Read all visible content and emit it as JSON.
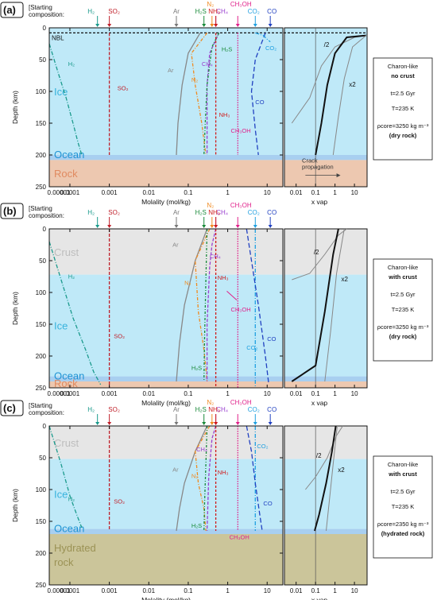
{
  "chart_data": [
    {
      "type": "line",
      "panel": "(a)",
      "starting_composition_label": "[Starting composition:",
      "xlabel": "Molality (mol/kg)",
      "ylabel": "Depth (km)",
      "x_scale": "log",
      "xlim": [
        3e-05,
        25
      ],
      "ylim": [
        0,
        250
      ],
      "x_ticks": [
        "0.00001",
        "0.0001",
        "0.001",
        "0.01",
        "0.1",
        "1",
        "10"
      ],
      "y_ticks": [
        "0",
        "50",
        "100",
        "150",
        "200",
        "250"
      ],
      "right_xlabel": "x vap",
      "right_x_ticks": [
        "0.01",
        "0.1",
        "1",
        "10"
      ],
      "layers": [
        {
          "name": "Ice",
          "from": 0,
          "to": 200,
          "color": "#bfe9f8"
        },
        {
          "name": "Ocean",
          "from": 200,
          "to": 208,
          "color": "#a8cff0"
        },
        {
          "name": "Rock",
          "from": 208,
          "to": 250,
          "color": "#edc8b0"
        }
      ],
      "nbl_label": "NBL",
      "nbl_depth": 8,
      "starting_markers": [
        {
          "name": "H₂",
          "x": 0.0005,
          "color": "#1a9a8c"
        },
        {
          "name": "SO₂",
          "x": 0.001,
          "color": "#c0202a"
        },
        {
          "name": "Ar",
          "x": 0.05,
          "color": "#777777"
        },
        {
          "name": "H₂S",
          "x": 0.25,
          "color": "#1a8a3a"
        },
        {
          "name": "N₂",
          "x": 0.4,
          "color": "#f08a20"
        },
        {
          "name": "CH₄",
          "x": 0.5,
          "color": "#9a40d0"
        },
        {
          "name": "NH₃",
          "x": 0.5,
          "color": "#d01a1a"
        },
        {
          "name": "CH₃OH",
          "x": 1.8,
          "color": "#e0208a"
        },
        {
          "name": "CO₂",
          "x": 5,
          "color": "#20a0e0"
        },
        {
          "name": "CO",
          "x": 12,
          "color": "#2040c0"
        }
      ],
      "series": [
        {
          "name": "H₂",
          "color": "#1a9a8c",
          "x": [
            3e-05,
            5e-05,
            8e-05,
            0.00012,
            0.00016,
            0.0002
          ],
          "y": [
            25,
            70,
            110,
            150,
            180,
            200
          ]
        },
        {
          "name": "SO₂",
          "color": "#c0202a",
          "x": [
            0.001,
            0.001,
            0.001
          ],
          "y": [
            8,
            100,
            200
          ]
        },
        {
          "name": "Ar",
          "color": "#888888",
          "x": [
            0.2,
            0.1,
            0.07,
            0.055,
            0.05
          ],
          "y": [
            8,
            40,
            90,
            150,
            200
          ]
        },
        {
          "name": "N₂",
          "color": "#f08a20",
          "x": [
            0.3,
            0.12,
            0.15,
            0.22,
            0.28
          ],
          "y": [
            8,
            40,
            90,
            150,
            200
          ]
        },
        {
          "name": "CH₄",
          "color": "#9a40d0",
          "x": [
            0.6,
            0.35,
            0.3,
            0.3,
            0.3
          ],
          "y": [
            8,
            40,
            90,
            150,
            200
          ]
        },
        {
          "name": "H₂S",
          "color": "#1a8a3a",
          "x": [
            0.6,
            0.4,
            0.3,
            0.27,
            0.25
          ],
          "y": [
            8,
            30,
            90,
            150,
            200
          ]
        },
        {
          "name": "NH₃",
          "color": "#d01a1a",
          "x": [
            0.5,
            0.5,
            0.5
          ],
          "y": [
            8,
            100,
            200
          ]
        },
        {
          "name": "CH₃OH",
          "color": "#e0208a",
          "x": [
            1.8,
            1.8,
            1.8
          ],
          "y": [
            8,
            100,
            200
          ]
        },
        {
          "name": "CO",
          "color": "#2040c0",
          "x": [
            9,
            5,
            4,
            5,
            6
          ],
          "y": [
            8,
            50,
            100,
            160,
            200
          ]
        },
        {
          "name": "CO₂",
          "color": "#20a0e0",
          "x": [
            5,
            8,
            10,
            12
          ],
          "y": [
            8,
            12,
            18,
            22
          ]
        }
      ],
      "right_curves": [
        {
          "label": "/2",
          "color": "#888888",
          "width": 1,
          "x": [
            0.006,
            0.05,
            0.2,
            1.0,
            10,
            40
          ],
          "y": [
            150,
            110,
            60,
            30,
            15,
            12
          ]
        },
        {
          "label": "",
          "color": "#111111",
          "width": 2,
          "x": [
            0.1,
            0.2,
            0.4,
            1.0,
            4,
            40
          ],
          "y": [
            200,
            150,
            90,
            40,
            15,
            12
          ]
        },
        {
          "label": "x2",
          "color": "#888888",
          "width": 1,
          "x": [
            0.8,
            1.5,
            3,
            8,
            40
          ],
          "y": [
            200,
            140,
            80,
            30,
            12
          ]
        }
      ],
      "crack_label": "Crack propagation",
      "box": [
        "Charon-like",
        "no crust",
        "t=2.5 Gyr",
        "T=235 K",
        "ρcore=3250 kg m⁻³",
        "(dry rock)"
      ]
    },
    {
      "type": "line",
      "panel": "(b)",
      "starting_composition_label": "[Starting composition:",
      "xlabel": "Molality (mol/kg)",
      "ylabel": "Depth (km)",
      "x_scale": "log",
      "xlim": [
        3e-05,
        25
      ],
      "ylim": [
        0,
        250
      ],
      "x_ticks": [
        "0.00001",
        "0.0001",
        "0.001",
        "0.01",
        "0.1",
        "1",
        "10"
      ],
      "y_ticks": [
        "0",
        "50",
        "100",
        "150",
        "200",
        "250"
      ],
      "right_xlabel": "x vap",
      "right_x_ticks": [
        "0.01",
        "0.1",
        "1",
        "10"
      ],
      "layers": [
        {
          "name": "Crust",
          "from": 0,
          "to": 72,
          "color": "#e6e6e6"
        },
        {
          "name": "Ice",
          "from": 72,
          "to": 232,
          "color": "#bfe9f8"
        },
        {
          "name": "Ocean",
          "from": 232,
          "to": 240,
          "color": "#a8cff0"
        },
        {
          "name": "Rock",
          "from": 240,
          "to": 250,
          "color": "#edc8b0"
        }
      ],
      "nbl_label": "",
      "nbl_depth": null,
      "starting_markers": [
        {
          "name": "H₂",
          "x": 0.0005,
          "color": "#1a9a8c"
        },
        {
          "name": "SO₂",
          "x": 0.001,
          "color": "#c0202a"
        },
        {
          "name": "Ar",
          "x": 0.05,
          "color": "#777777"
        },
        {
          "name": "H₂S",
          "x": 0.25,
          "color": "#1a8a3a"
        },
        {
          "name": "N₂",
          "x": 0.4,
          "color": "#f08a20"
        },
        {
          "name": "CH₄",
          "x": 0.5,
          "color": "#9a40d0"
        },
        {
          "name": "NH₃",
          "x": 0.5,
          "color": "#d01a1a"
        },
        {
          "name": "CH₃OH",
          "x": 1.8,
          "color": "#e0208a"
        },
        {
          "name": "CO₂",
          "x": 5,
          "color": "#20a0e0"
        },
        {
          "name": "CO",
          "x": 12,
          "color": "#2040c0"
        }
      ],
      "series": [
        {
          "name": "H₂",
          "color": "#1a9a8c",
          "x": [
            3e-05,
            6e-05,
            0.00012,
            0.00025,
            0.0004,
            0.0006
          ],
          "y": [
            20,
            80,
            140,
            190,
            225,
            245
          ]
        },
        {
          "name": "SO₂",
          "color": "#c0202a",
          "x": [
            0.001,
            0.001,
            0.001
          ],
          "y": [
            0,
            120,
            250
          ]
        },
        {
          "name": "Ar",
          "color": "#888888",
          "x": [
            0.3,
            0.15,
            0.08,
            0.06,
            0.05
          ],
          "y": [
            0,
            50,
            120,
            180,
            240
          ]
        },
        {
          "name": "N₂",
          "color": "#f08a20",
          "x": [
            0.35,
            0.15,
            0.18,
            0.25,
            0.3
          ],
          "y": [
            0,
            50,
            130,
            190,
            240
          ]
        },
        {
          "name": "CH₄",
          "color": "#9a40d0",
          "x": [
            0.5,
            0.4,
            0.35,
            0.3,
            0.3
          ],
          "y": [
            0,
            25,
            60,
            150,
            240
          ]
        },
        {
          "name": "H₂S",
          "color": "#1a8a3a",
          "x": [
            0.3,
            0.28,
            0.26,
            0.25
          ],
          "y": [
            0,
            80,
            170,
            240
          ]
        },
        {
          "name": "NH₃",
          "color": "#d01a1a",
          "x": [
            0.5,
            0.5,
            0.5
          ],
          "y": [
            0,
            120,
            250
          ]
        },
        {
          "name": "CH₃OH",
          "color": "#e0208a",
          "x": [
            1.8,
            1.8,
            1.8
          ],
          "y": [
            0,
            120,
            250
          ]
        },
        {
          "name": "CO₂",
          "color": "#20a0e0",
          "x": [
            5,
            5,
            5
          ],
          "y": [
            0,
            120,
            250
          ]
        },
        {
          "name": "CO",
          "color": "#2040c0",
          "x": [
            3,
            4,
            6,
            9,
            11
          ],
          "y": [
            0,
            50,
            120,
            200,
            245
          ]
        }
      ],
      "right_curves": [
        {
          "label": "/2",
          "color": "#888888",
          "width": 1,
          "x": [
            0.006,
            0.05,
            0.3,
            1.5,
            4
          ],
          "y": [
            80,
            70,
            40,
            10,
            0
          ]
        },
        {
          "label": "",
          "color": "#111111",
          "width": 2,
          "x": [
            0.006,
            0.1,
            0.3,
            0.8,
            1.5
          ],
          "y": [
            240,
            215,
            130,
            40,
            0
          ]
        },
        {
          "label": "x2",
          "color": "#888888",
          "width": 1,
          "x": [
            0.3,
            0.6,
            1.2,
            3
          ],
          "y": [
            240,
            160,
            70,
            0
          ]
        }
      ],
      "crack_label": "",
      "box": [
        "Charon-like",
        "with crust",
        "t=2.5 Gyr",
        "T=235 K",
        "ρcore=3250 kg m⁻³",
        "(dry rock)"
      ]
    },
    {
      "type": "line",
      "panel": "(c)",
      "starting_composition_label": "[Starting composition:",
      "xlabel": "Molality (mol/kg)",
      "ylabel": "Depth (km)",
      "x_scale": "log",
      "xlim": [
        3e-05,
        25
      ],
      "ylim": [
        0,
        250
      ],
      "x_ticks": [
        "0.00001",
        "0.0001",
        "0.001",
        "0.01",
        "0.1",
        "1",
        "10"
      ],
      "y_ticks": [
        "0",
        "50",
        "100",
        "150",
        "200",
        "250"
      ],
      "right_xlabel": "x vap",
      "right_x_ticks": [
        "0.01",
        "0.1",
        "1",
        "10"
      ],
      "layers": [
        {
          "name": "Crust",
          "from": 0,
          "to": 52,
          "color": "#e6e6e6"
        },
        {
          "name": "Ice",
          "from": 52,
          "to": 162,
          "color": "#bfe9f8"
        },
        {
          "name": "Ocean",
          "from": 162,
          "to": 170,
          "color": "#a8cff0"
        },
        {
          "name": "Hydrated rock",
          "from": 170,
          "to": 250,
          "color": "#cbc59a"
        }
      ],
      "nbl_label": "",
      "nbl_depth": null,
      "starting_markers": [
        {
          "name": "H₂",
          "x": 0.0005,
          "color": "#1a9a8c"
        },
        {
          "name": "SO₂",
          "x": 0.001,
          "color": "#c0202a"
        },
        {
          "name": "Ar",
          "x": 0.05,
          "color": "#777777"
        },
        {
          "name": "H₂S",
          "x": 0.25,
          "color": "#1a8a3a"
        },
        {
          "name": "N₂",
          "x": 0.4,
          "color": "#f08a20"
        },
        {
          "name": "CH₄",
          "x": 0.5,
          "color": "#9a40d0"
        },
        {
          "name": "NH₃",
          "x": 0.5,
          "color": "#d01a1a"
        },
        {
          "name": "CH₃OH",
          "x": 1.8,
          "color": "#e0208a"
        },
        {
          "name": "CO₂",
          "x": 5,
          "color": "#20a0e0"
        },
        {
          "name": "CO",
          "x": 12,
          "color": "#2040c0"
        }
      ],
      "series": [
        {
          "name": "H₂",
          "color": "#1a9a8c",
          "x": [
            3e-05,
            6e-05,
            0.0001,
            0.00015,
            0.0002
          ],
          "y": [
            0,
            60,
            110,
            140,
            160
          ]
        },
        {
          "name": "SO₂",
          "color": "#c0202a",
          "x": [
            0.001,
            0.001,
            0.001
          ],
          "y": [
            0,
            80,
            165
          ]
        },
        {
          "name": "Ar",
          "color": "#888888",
          "x": [
            0.3,
            0.15,
            0.08,
            0.06,
            0.05
          ],
          "y": [
            0,
            40,
            90,
            130,
            165
          ]
        },
        {
          "name": "N₂",
          "color": "#f08a20",
          "x": [
            0.35,
            0.15,
            0.18,
            0.25,
            0.28
          ],
          "y": [
            0,
            40,
            90,
            130,
            165
          ]
        },
        {
          "name": "CH₄",
          "color": "#9a40d0",
          "x": [
            0.5,
            0.4,
            0.33,
            0.3
          ],
          "y": [
            0,
            20,
            80,
            165
          ]
        },
        {
          "name": "H₂S",
          "color": "#1a8a3a",
          "x": [
            0.3,
            0.28,
            0.26,
            0.25
          ],
          "y": [
            0,
            60,
            120,
            165
          ]
        },
        {
          "name": "NH₃",
          "color": "#d01a1a",
          "x": [
            0.5,
            0.5,
            0.5
          ],
          "y": [
            0,
            80,
            165
          ]
        },
        {
          "name": "CH₃OH",
          "color": "#e0208a",
          "x": [
            1.8,
            1.8,
            1.8
          ],
          "y": [
            0,
            80,
            165
          ]
        },
        {
          "name": "CO₂",
          "color": "#20a0e0",
          "x": [
            5,
            5,
            5
          ],
          "y": [
            0,
            80,
            165
          ]
        },
        {
          "name": "CO",
          "color": "#2040c0",
          "x": [
            3,
            4,
            5,
            6.5,
            7.5
          ],
          "y": [
            0,
            40,
            90,
            140,
            165
          ]
        }
      ],
      "right_curves": [
        {
          "label": "/2",
          "color": "#888888",
          "width": 1,
          "x": [
            0.03,
            0.1,
            0.4,
            1.2,
            2.5
          ],
          "y": [
            100,
            80,
            50,
            15,
            0
          ]
        },
        {
          "label": "",
          "color": "#111111",
          "width": 2,
          "x": [
            0.09,
            0.15,
            0.35,
            0.7,
            1.1
          ],
          "y": [
            165,
            140,
            90,
            40,
            0
          ]
        },
        {
          "label": "x2",
          "color": "#888888",
          "width": 1,
          "x": [
            0.35,
            0.5,
            0.8,
            1.3
          ],
          "y": [
            165,
            120,
            60,
            0
          ]
        }
      ],
      "crack_label": "",
      "box": [
        "Charon-like",
        "with crust",
        "t=2.5 Gyr",
        "T=235 K",
        "ρcore=2350 kg m⁻³",
        "(hydrated rock)"
      ]
    }
  ]
}
